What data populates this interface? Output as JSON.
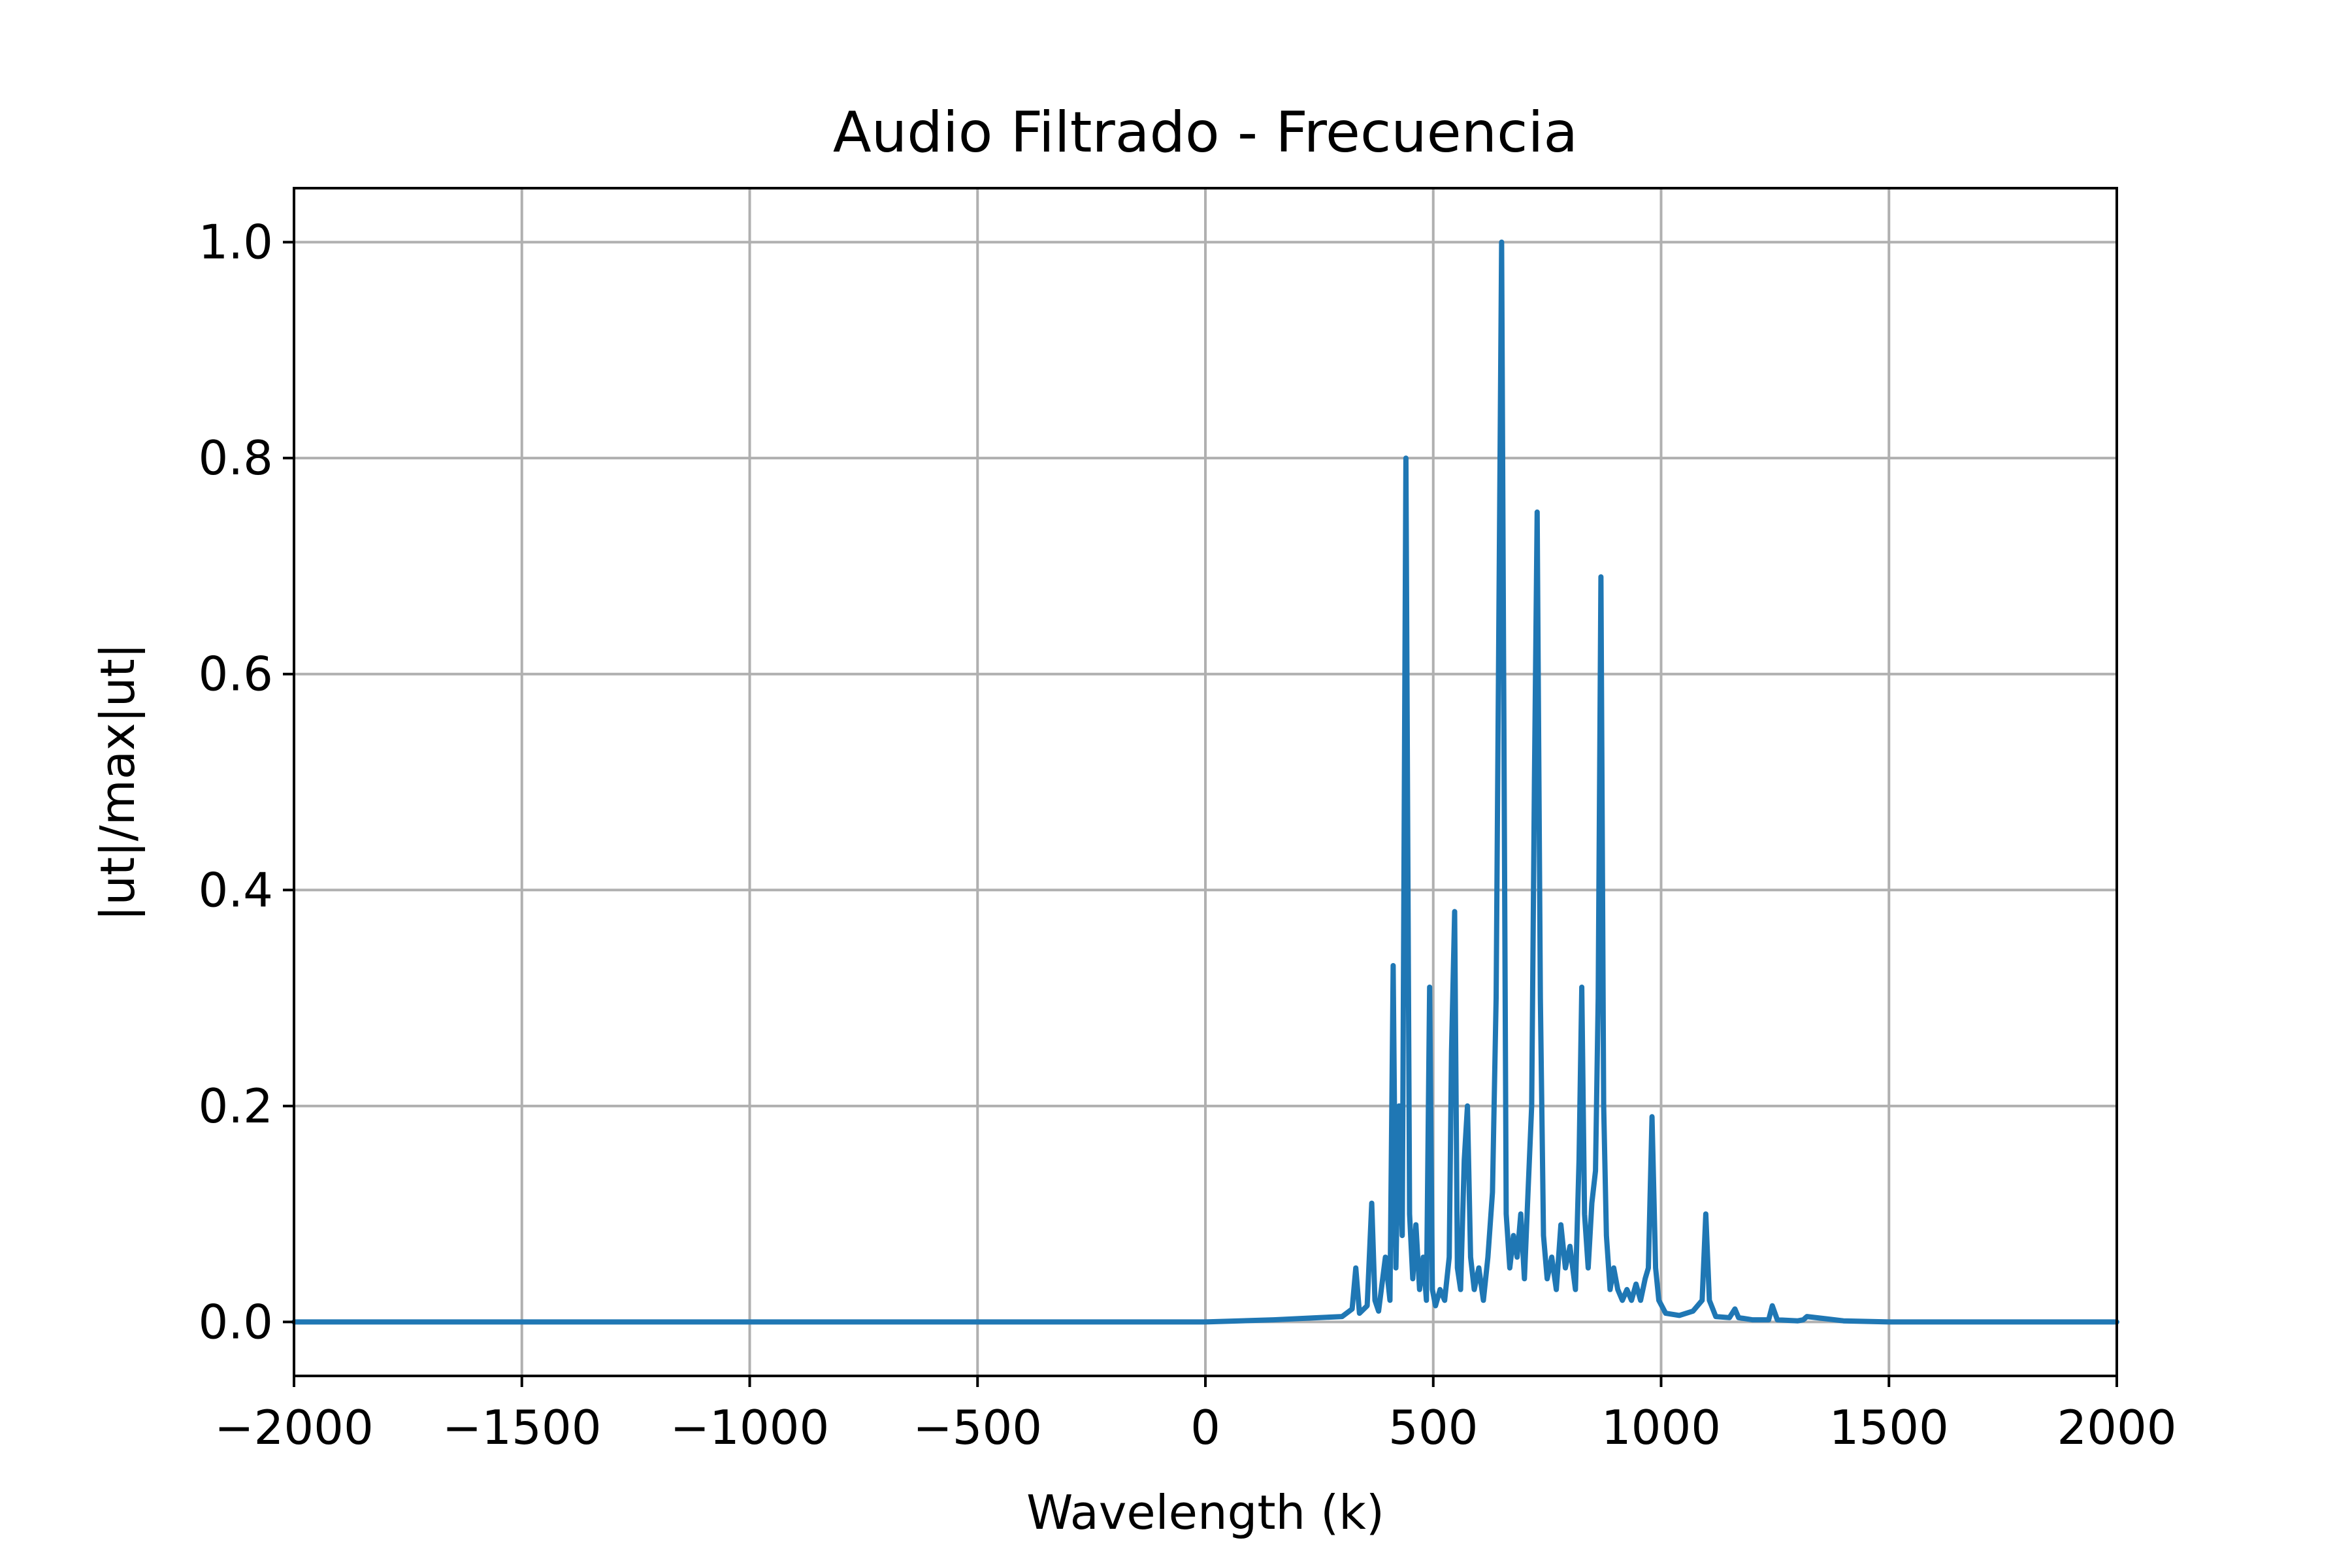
{
  "chart_data": {
    "type": "line",
    "title": "Audio Filtrado - Frecuencia",
    "xlabel": "Wavelength (k)",
    "ylabel": "|ut|/max|ut|",
    "xlim": [
      -2000,
      2000
    ],
    "ylim": [
      -0.05,
      1.05
    ],
    "xticks": [
      -2000,
      -1500,
      -1000,
      -500,
      0,
      500,
      1000,
      1500,
      2000
    ],
    "xtick_labels": [
      "−2000",
      "−1500",
      "−1000",
      "−500",
      "0",
      "500",
      "1000",
      "1500",
      "2000"
    ],
    "yticks": [
      0.0,
      0.2,
      0.4,
      0.6,
      0.8,
      1.0
    ],
    "ytick_labels": [
      "0.0",
      "0.2",
      "0.4",
      "0.6",
      "0.8",
      "1.0"
    ],
    "grid": true,
    "color": "#1f77b4",
    "series": [
      {
        "x": [
          -2000,
          -1000,
          0,
          150,
          250,
          300,
          322,
          330,
          338,
          355,
          365,
          372,
          380,
          395,
          405,
          412,
          418,
          425,
          432,
          440,
          448,
          455,
          462,
          470,
          478,
          485,
          492,
          498,
          505,
          515,
          525,
          535,
          540,
          547,
          553,
          560,
          568,
          575,
          582,
          590,
          600,
          610,
          620,
          630,
          638,
          645,
          650,
          655,
          660,
          668,
          676,
          684,
          692,
          700,
          708,
          716,
          722,
          728,
          735,
          742,
          750,
          760,
          770,
          780,
          790,
          800,
          812,
          820,
          826,
          832,
          840,
          848,
          856,
          862,
          868,
          874,
          880,
          888,
          896,
          905,
          915,
          925,
          935,
          945,
          955,
          965,
          972,
          980,
          988,
          995,
          1010,
          1040,
          1070,
          1090,
          1098,
          1106,
          1120,
          1150,
          1162,
          1170,
          1200,
          1236,
          1244,
          1255,
          1300,
          1312,
          1320,
          1400,
          1500,
          2000
        ],
        "y": [
          0.0,
          0.0,
          0.0,
          0.002,
          0.004,
          0.005,
          0.012,
          0.05,
          0.008,
          0.015,
          0.11,
          0.02,
          0.01,
          0.06,
          0.02,
          0.33,
          0.05,
          0.2,
          0.08,
          0.8,
          0.1,
          0.04,
          0.09,
          0.03,
          0.06,
          0.02,
          0.31,
          0.03,
          0.015,
          0.03,
          0.02,
          0.06,
          0.25,
          0.38,
          0.05,
          0.03,
          0.15,
          0.2,
          0.06,
          0.03,
          0.05,
          0.02,
          0.06,
          0.12,
          0.3,
          0.71,
          1.0,
          0.55,
          0.1,
          0.05,
          0.08,
          0.06,
          0.1,
          0.04,
          0.12,
          0.2,
          0.5,
          0.75,
          0.3,
          0.08,
          0.04,
          0.06,
          0.03,
          0.09,
          0.05,
          0.07,
          0.03,
          0.15,
          0.31,
          0.1,
          0.05,
          0.11,
          0.14,
          0.3,
          0.69,
          0.2,
          0.08,
          0.03,
          0.05,
          0.03,
          0.02,
          0.03,
          0.02,
          0.035,
          0.02,
          0.04,
          0.05,
          0.19,
          0.05,
          0.02,
          0.008,
          0.006,
          0.01,
          0.02,
          0.1,
          0.02,
          0.005,
          0.004,
          0.012,
          0.004,
          0.002,
          0.002,
          0.015,
          0.002,
          0.001,
          0.002,
          0.005,
          0.001,
          0.0,
          0.0
        ]
      }
    ]
  }
}
